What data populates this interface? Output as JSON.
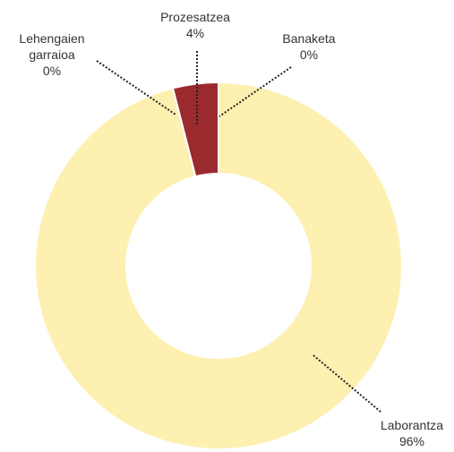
{
  "chart_data": {
    "type": "donut",
    "categories": [
      "Banaketa",
      "Laborantza",
      "Lehengaien garraioa",
      "Prozesatzea"
    ],
    "values": [
      0,
      96,
      0,
      4
    ],
    "value_labels": [
      "0%",
      "96%",
      "0%",
      "4%"
    ],
    "colors": [
      "#9b2a2e",
      "#fdf0b0",
      "#fdf0b0",
      "#9b2a2e"
    ]
  }
}
